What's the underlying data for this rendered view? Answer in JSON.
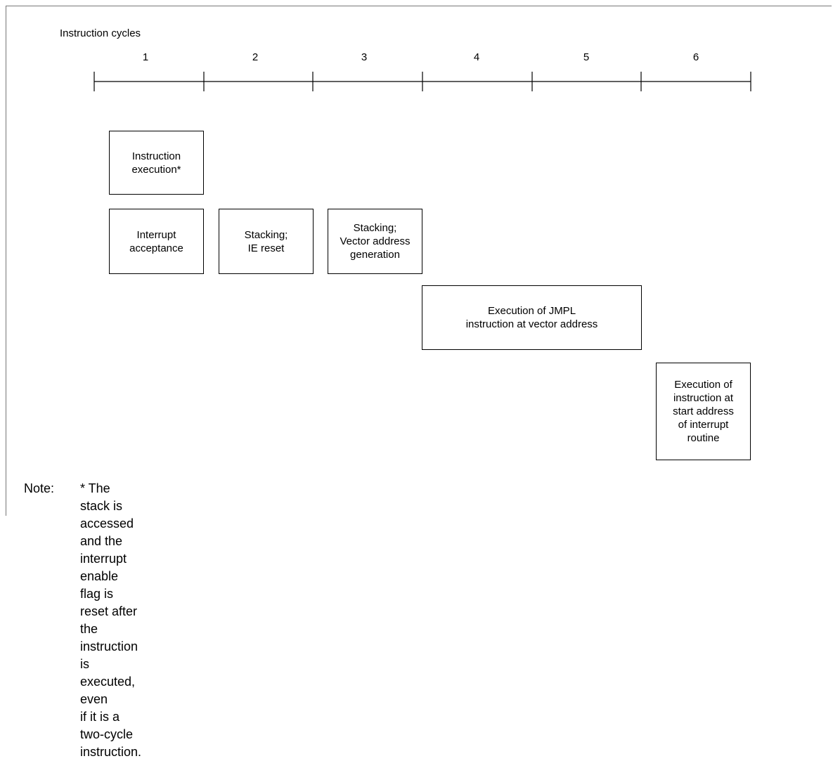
{
  "axis_title": "Instruction cycles",
  "cycles": [
    "1",
    "2",
    "3",
    "4",
    "5",
    "6"
  ],
  "boxes": {
    "instruction_execution": "Instruction\nexecution*",
    "interrupt_acceptance": "Interrupt\nacceptance",
    "stacking_ie_reset": "Stacking;\nIE reset",
    "stacking_vector": "Stacking;\nVector address\ngeneration",
    "jmpl_execution": "Execution of JMPL\ninstruction at vector address",
    "routine_start": "Execution of\ninstruction at\nstart address\nof interrupt\nroutine"
  },
  "note": {
    "label": "Note:",
    "text": "* The stack is accessed and the interrupt enable flag is reset after the instruction is executed, even\nif it is a two-cycle instruction."
  }
}
